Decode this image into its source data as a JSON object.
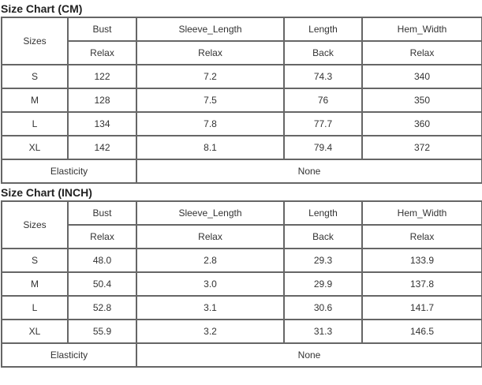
{
  "charts": [
    {
      "title": "Size Chart (CM)",
      "header": {
        "sizes_label": "Sizes",
        "columns": [
          "Bust",
          "Sleeve_Length",
          "Length",
          "Hem_Width"
        ],
        "sub": [
          "Relax",
          "Relax",
          "Back",
          "Relax"
        ]
      },
      "rows": [
        [
          "S",
          "122",
          "7.2",
          "74.3",
          "340"
        ],
        [
          "M",
          "128",
          "7.5",
          "76",
          "350"
        ],
        [
          "L",
          "134",
          "7.8",
          "77.7",
          "360"
        ],
        [
          "XL",
          "142",
          "8.1",
          "79.4",
          "372"
        ]
      ],
      "footer": {
        "label": "Elasticity",
        "value": "None"
      }
    },
    {
      "title": "Size Chart (INCH)",
      "header": {
        "sizes_label": "Sizes",
        "columns": [
          "Bust",
          "Sleeve_Length",
          "Length",
          "Hem_Width"
        ],
        "sub": [
          "Relax",
          "Relax",
          "Back",
          "Relax"
        ]
      },
      "rows": [
        [
          "S",
          "48.0",
          "2.8",
          "29.3",
          "133.9"
        ],
        [
          "M",
          "50.4",
          "3.0",
          "29.9",
          "137.8"
        ],
        [
          "L",
          "52.8",
          "3.1",
          "30.6",
          "141.7"
        ],
        [
          "XL",
          "55.9",
          "3.2",
          "31.3",
          "146.5"
        ]
      ],
      "footer": {
        "label": "Elasticity",
        "value": "None"
      }
    }
  ]
}
